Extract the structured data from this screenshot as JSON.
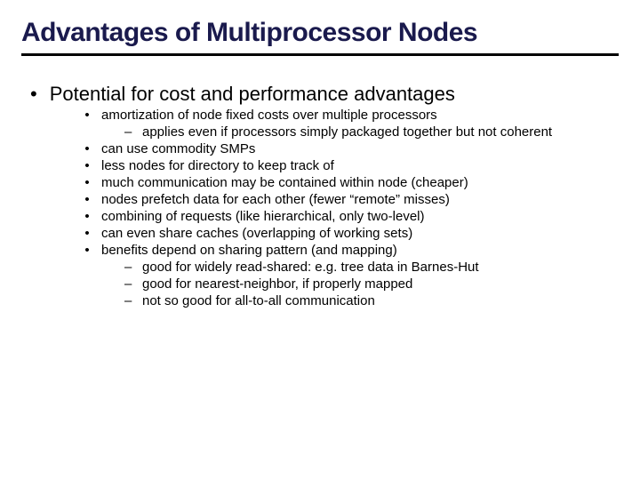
{
  "title": "Advantages of Multiprocessor Nodes",
  "title_color": "#1a1a4d",
  "title_fontsize": 30,
  "underline_color": "#000000",
  "underline_width": 3,
  "background_color": "#ffffff",
  "text_color": "#000000",
  "main_bullet": {
    "marker": "•",
    "text": "Potential for cost and performance advantages",
    "fontsize": 22
  },
  "sub_bullets": {
    "marker": "•",
    "fontsize": 15,
    "items": [
      {
        "text": "amortization of node fixed costs over multiple processors",
        "children": [
          "applies even if processors  simply packaged together but not coherent"
        ]
      },
      {
        "text": "can use commodity SMPs",
        "children": []
      },
      {
        "text": "less nodes for directory to keep track of",
        "children": []
      },
      {
        "text": "much communication may be contained within node (cheaper)",
        "children": []
      },
      {
        "text": "nodes prefetch data for each other (fewer “remote” misses)",
        "children": []
      },
      {
        "text": "combining of requests (like hierarchical, only two-level)",
        "children": []
      },
      {
        "text": "can even share caches (overlapping of working sets)",
        "children": []
      },
      {
        "text": "benefits depend on sharing pattern (and mapping)",
        "children": [
          "good for widely read-shared: e.g. tree data in Barnes-Hut",
          "good for nearest-neighbor, if properly mapped",
          "not so good for all-to-all communication"
        ]
      }
    ]
  },
  "subsub_marker": "–",
  "subsub_fontsize": 15
}
